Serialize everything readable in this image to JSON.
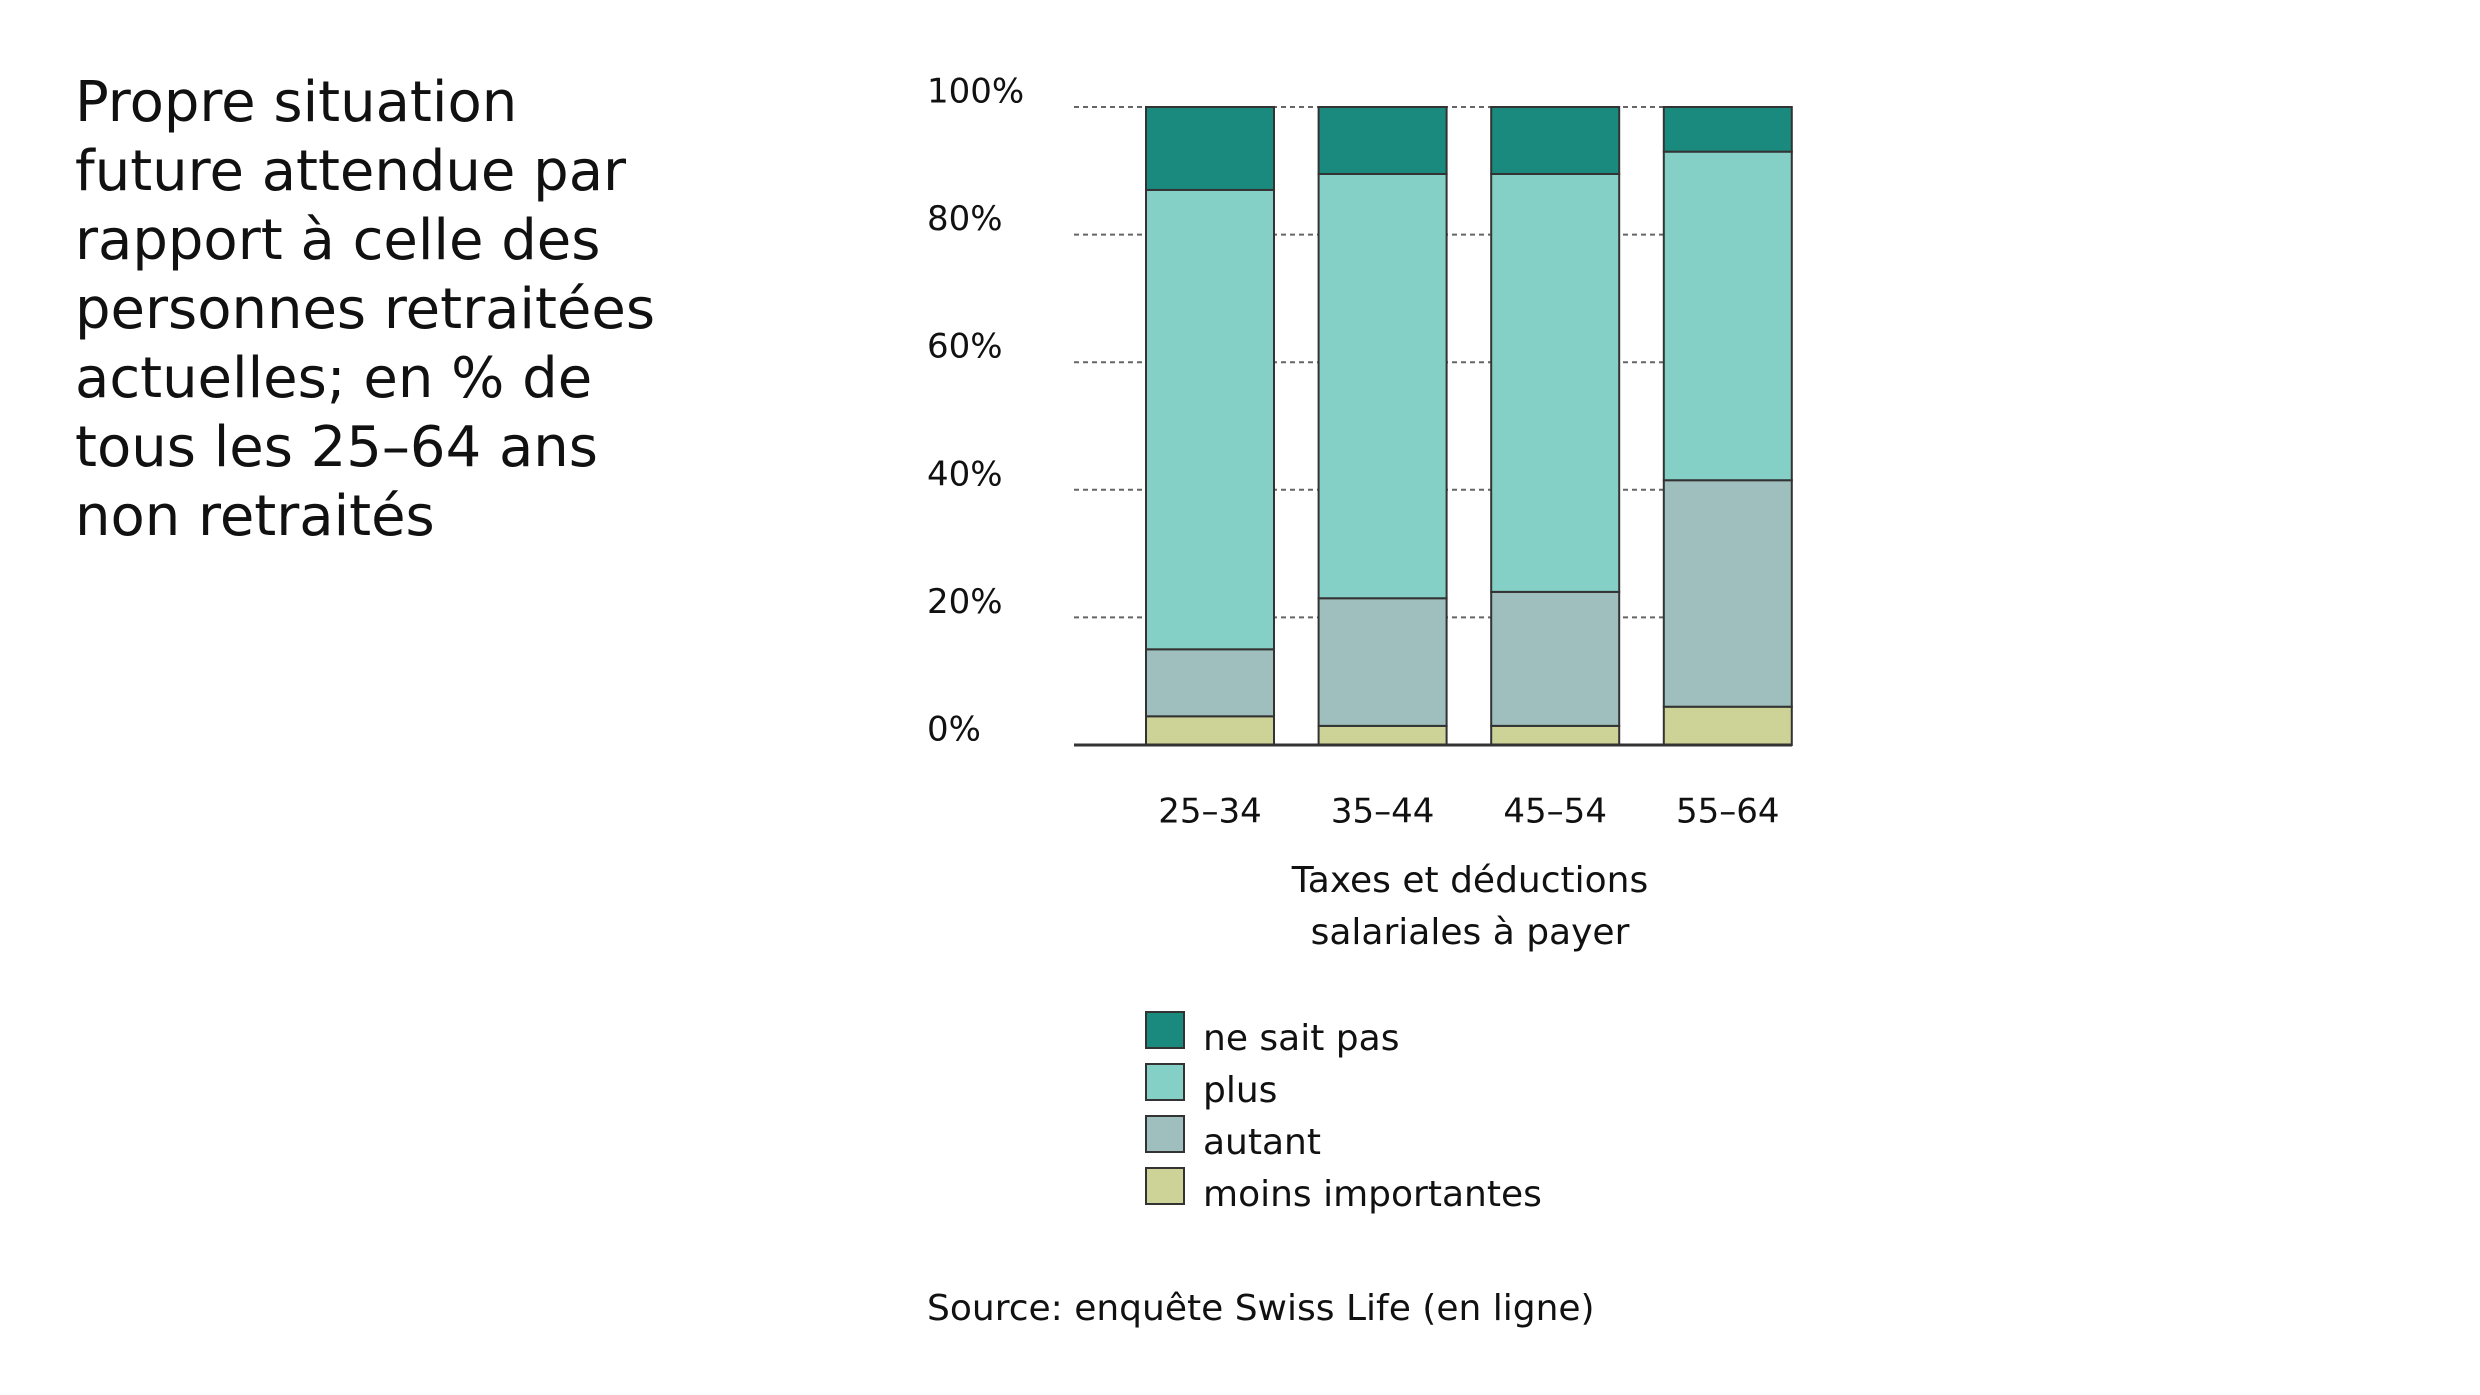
{
  "chart_data": {
    "type": "stacked_bar",
    "title": "Propre situation future attendue par rapport à celle des personnes retraitées actuelles; en % de tous les 25–64 ans non retraités",
    "x_label": "Taxes et déductions salariales à payer",
    "source": "Source: enquête Swiss Life (en ligne)",
    "categories": [
      "25–34",
      "35–44",
      "45–54",
      "55–64"
    ],
    "series": [
      {
        "name": "moins importantes",
        "color": "#cdd396",
        "values": [
          4.5,
          3,
          3,
          6
        ]
      },
      {
        "name": "autant",
        "color": "#9ebfbd",
        "values": [
          10.5,
          20,
          21,
          35.5
        ]
      },
      {
        "name": "plus",
        "color": "#84d0c6",
        "values": [
          72,
          66.5,
          65.5,
          51.5
        ]
      },
      {
        "name": "ne sait pas",
        "color": "#1a8a7e",
        "values": [
          13,
          10.5,
          10.5,
          7
        ]
      }
    ],
    "ylim": [
      0,
      100
    ],
    "yticks": [
      {
        "value": 0,
        "label": "0%"
      },
      {
        "value": 20,
        "label": "20%"
      },
      {
        "value": 40,
        "label": "40%"
      },
      {
        "value": 60,
        "label": "60%"
      },
      {
        "value": 80,
        "label": "80%"
      },
      {
        "value": 100,
        "label": "100%"
      }
    ],
    "grid": true
  }
}
